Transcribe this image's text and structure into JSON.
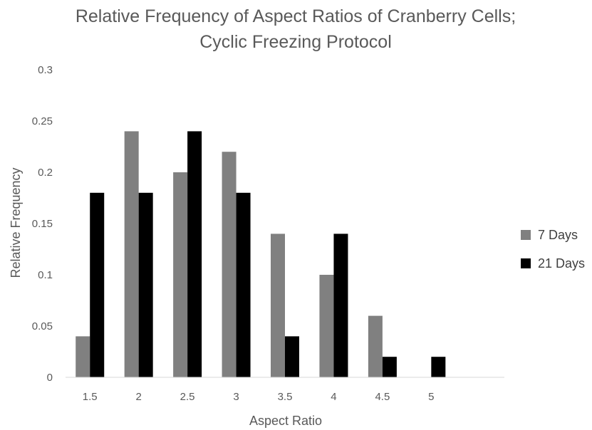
{
  "chart_data": {
    "type": "bar",
    "title": "Relative Frequency of Aspect Ratios of Cranberry Cells; Cyclic Freezing Protocol",
    "title_lines": [
      "Relative Frequency of Aspect Ratios of Cranberry Cells;",
      "Cyclic Freezing Protocol"
    ],
    "xlabel": "Aspect Ratio",
    "ylabel": "Relative Frequency",
    "categories": [
      "1.5",
      "2",
      "2.5",
      "3",
      "3.5",
      "4",
      "4.5",
      "5",
      ""
    ],
    "ylim": [
      0,
      0.3
    ],
    "yticks": [
      "0",
      "0.05",
      "0.1",
      "0.15",
      "0.2",
      "0.25",
      "0.3"
    ],
    "grid": false,
    "legend_position": "right",
    "series": [
      {
        "name": "7 Days",
        "color": "#808080",
        "values": [
          0.04,
          0.24,
          0.2,
          0.22,
          0.14,
          0.1,
          0.06,
          0,
          0
        ]
      },
      {
        "name": "21 Days",
        "color": "#000000",
        "values": [
          0.18,
          0.18,
          0.24,
          0.18,
          0.04,
          0.14,
          0.02,
          0.02,
          0
        ]
      }
    ]
  }
}
